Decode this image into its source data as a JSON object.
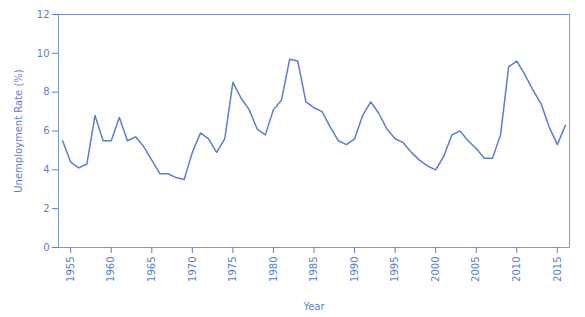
{
  "chart_data": {
    "type": "line",
    "x": [
      1954,
      1955,
      1956,
      1957,
      1958,
      1959,
      1960,
      1961,
      1962,
      1963,
      1964,
      1965,
      1966,
      1967,
      1968,
      1969,
      1970,
      1971,
      1972,
      1973,
      1974,
      1975,
      1976,
      1977,
      1978,
      1979,
      1980,
      1981,
      1982,
      1983,
      1984,
      1985,
      1986,
      1987,
      1988,
      1989,
      1990,
      1991,
      1992,
      1993,
      1994,
      1995,
      1996,
      1997,
      1998,
      1999,
      2000,
      2001,
      2002,
      2003,
      2004,
      2005,
      2006,
      2007,
      2008,
      2009,
      2010,
      2011,
      2012,
      2013,
      2014,
      2015,
      2016
    ],
    "values": [
      5.5,
      4.4,
      4.1,
      4.3,
      6.8,
      5.5,
      5.5,
      6.7,
      5.5,
      5.7,
      5.2,
      4.5,
      3.8,
      3.8,
      3.6,
      3.5,
      4.9,
      5.9,
      5.6,
      4.9,
      5.6,
      8.5,
      7.7,
      7.1,
      6.1,
      5.8,
      7.1,
      7.6,
      9.7,
      9.6,
      7.5,
      7.2,
      7.0,
      6.2,
      5.5,
      5.3,
      5.6,
      6.8,
      7.5,
      6.9,
      6.1,
      5.6,
      5.4,
      4.9,
      4.5,
      4.2,
      4.0,
      4.7,
      5.8,
      6.0,
      5.5,
      5.1,
      4.6,
      4.6,
      5.8,
      9.3,
      9.6,
      8.9,
      8.1,
      7.4,
      6.2,
      5.3,
      6.3
    ],
    "color": "#5b7fcc",
    "xlabel": "Year",
    "ylabel": "Unemployment Rate (%)",
    "xlim": [
      1953.5,
      2016.5
    ],
    "xticks": [
      1955,
      1960,
      1965,
      1970,
      1975,
      1980,
      1985,
      1990,
      1995,
      2000,
      2005,
      2010,
      2015
    ],
    "ylim": [
      0,
      12
    ],
    "yticks": [
      0,
      2,
      4,
      6,
      8,
      10,
      12
    ],
    "grid": false
  }
}
